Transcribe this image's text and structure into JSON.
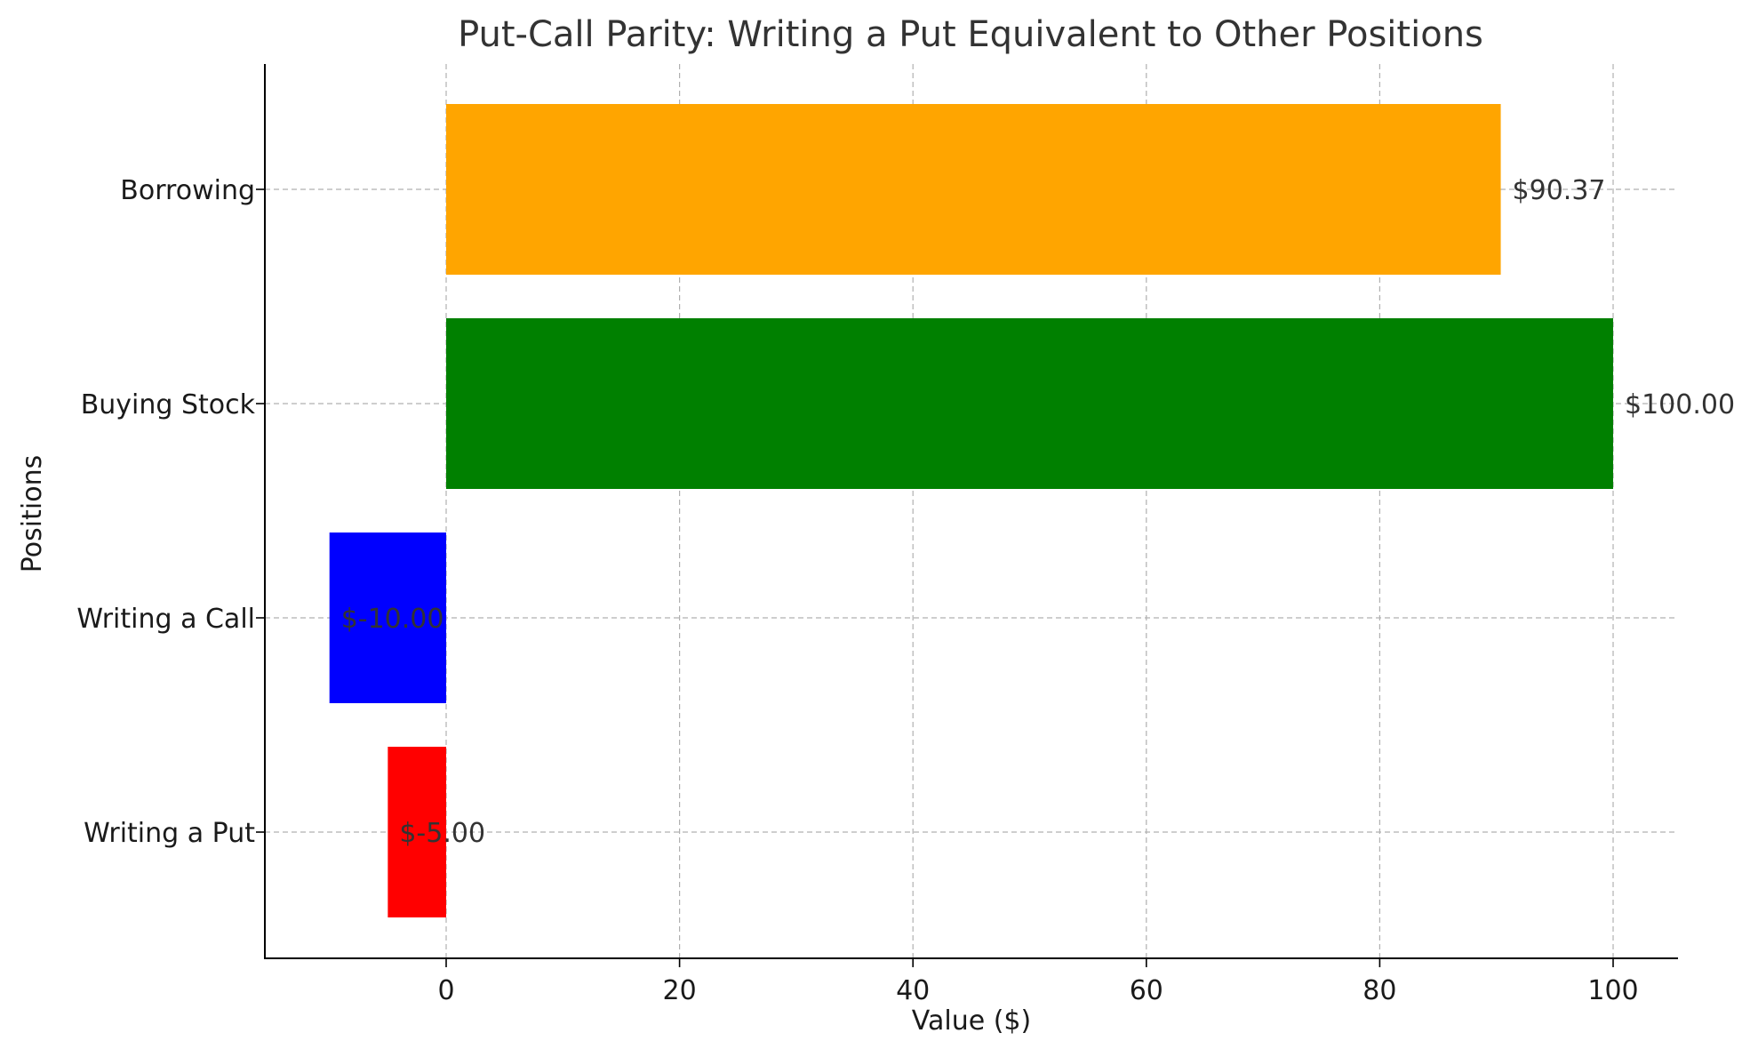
{
  "chart_data": {
    "type": "bar",
    "orientation": "horizontal",
    "title": "Put-Call Parity: Writing a Put Equivalent to Other Positions",
    "xlabel": "Value ($)",
    "ylabel": "Positions",
    "categories": [
      "Writing a Put",
      "Writing a Call",
      "Buying Stock",
      "Borrowing"
    ],
    "values": [
      -5.0,
      -10.0,
      100.0,
      90.37
    ],
    "data_labels": [
      "$-5.00",
      "$-10.00",
      "$100.00",
      "$90.37"
    ],
    "colors": [
      "#ff0000",
      "#0000ff",
      "#008000",
      "#ffa500"
    ],
    "xlim": [
      -15.5,
      105.5
    ],
    "xticks": [
      0,
      20,
      40,
      60,
      80,
      100
    ],
    "xtick_labels": [
      "0",
      "20",
      "40",
      "60",
      "80",
      "100"
    ],
    "grid": true
  }
}
